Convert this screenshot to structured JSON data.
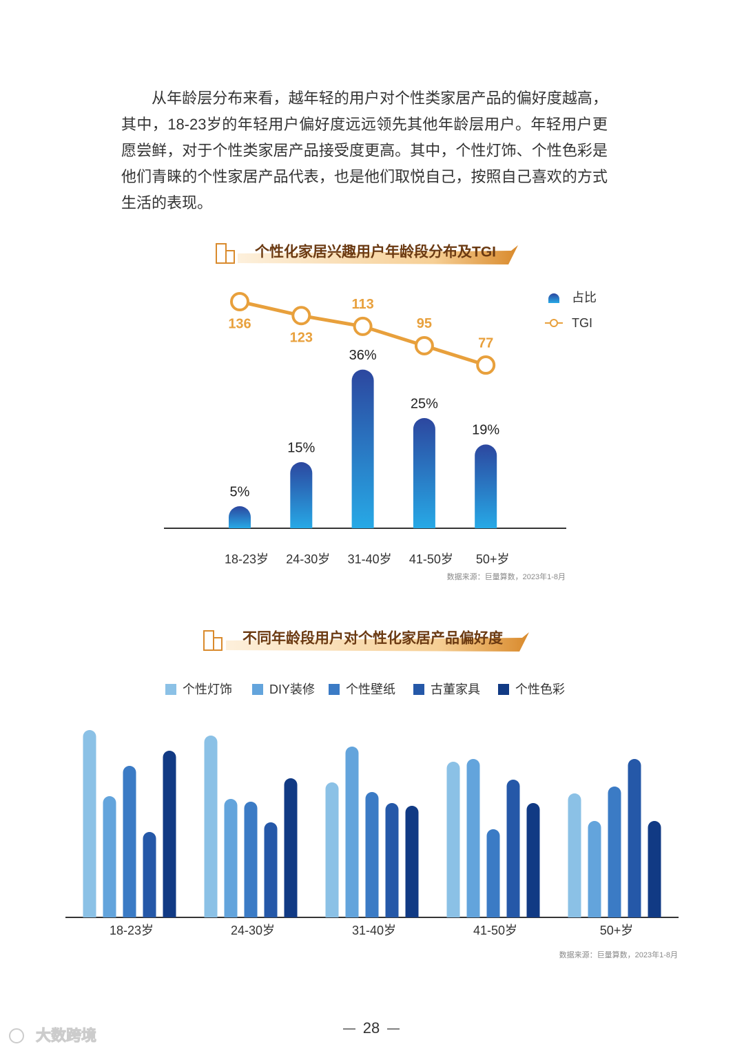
{
  "paragraph": "从年龄层分布来看，越年轻的用户对个性类家居产品的偏好度越高，其中，18-23岁的年轻用户偏好度远远领先其他年龄层用户。年轻用户更愿尝鲜，对于个性类家居产品接受度更高。其中，个性灯饰、个性色彩是他们青睐的个性家居产品代表，也是他们取悦自己，按照自己喜欢的方式生活的表现。",
  "chart_data": [
    {
      "type": "combo",
      "title": "个性化家居兴趣用户年龄段分布及TGI",
      "categories": [
        "18-23岁",
        "24-30岁",
        "31-40岁",
        "41-50岁",
        "50+岁"
      ],
      "series": [
        {
          "name": "占比",
          "type": "bar",
          "color": "#2f4fa6",
          "values": [
            5,
            15,
            36,
            25,
            19
          ],
          "value_labels": [
            "5%",
            "15%",
            "36%",
            "25%",
            "19%"
          ]
        },
        {
          "name": "TGI",
          "type": "line",
          "color": "#e8a03c",
          "values": [
            136,
            123,
            113,
            95,
            77
          ]
        }
      ],
      "source": "数据来源：巨量算数，2023年1-8月"
    },
    {
      "type": "bar",
      "title": "不同年龄段用户对个性化家居产品偏好度",
      "categories": [
        "18-23岁",
        "24-30岁",
        "31-40岁",
        "41-50岁",
        "50+岁"
      ],
      "series": [
        {
          "name": "个性灯饰",
          "color": "#8bc1e6",
          "values": [
            136,
            132,
            98,
            113,
            90
          ]
        },
        {
          "name": "DIY装修",
          "color": "#63a4dc",
          "values": [
            88,
            86,
            124,
            115,
            70
          ]
        },
        {
          "name": "个性壁纸",
          "color": "#3b7bc5",
          "values": [
            110,
            84,
            91,
            64,
            95
          ]
        },
        {
          "name": "古董家具",
          "color": "#2558a8",
          "values": [
            62,
            69,
            83,
            100,
            115
          ]
        },
        {
          "name": "个性色彩",
          "color": "#113a84",
          "values": [
            121,
            101,
            81,
            83,
            70
          ]
        }
      ],
      "source": "数据来源：巨量算数，2023年1-8月"
    }
  ],
  "page_number": "28",
  "watermark": "大数跨境"
}
